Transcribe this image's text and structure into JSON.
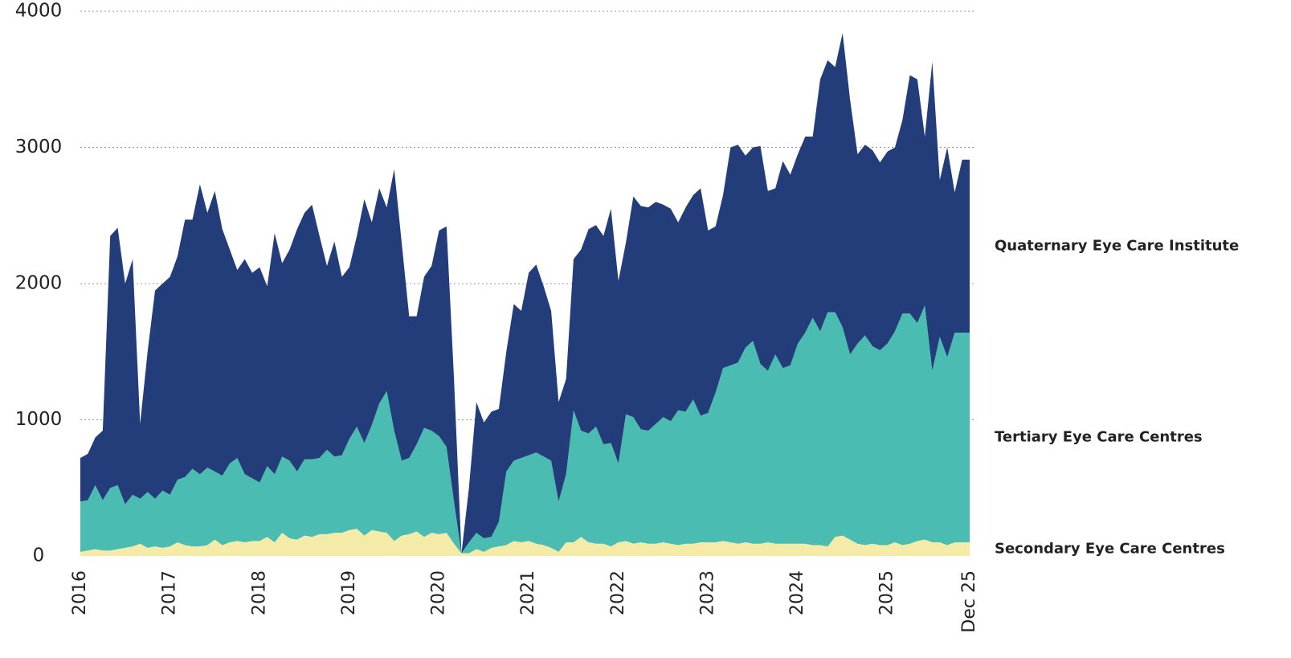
{
  "chart_data": {
    "type": "stacked-area",
    "x": [
      "2016-01",
      "2016-02",
      "2016-03",
      "2016-04",
      "2016-05",
      "2016-06",
      "2016-07",
      "2016-08",
      "2016-09",
      "2016-10",
      "2016-11",
      "2016-12",
      "2017-01",
      "2017-02",
      "2017-03",
      "2017-04",
      "2017-05",
      "2017-06",
      "2017-07",
      "2017-08",
      "2017-09",
      "2017-10",
      "2017-11",
      "2017-12",
      "2018-01",
      "2018-02",
      "2018-03",
      "2018-04",
      "2018-05",
      "2018-06",
      "2018-07",
      "2018-08",
      "2018-09",
      "2018-10",
      "2018-11",
      "2018-12",
      "2019-01",
      "2019-02",
      "2019-03",
      "2019-04",
      "2019-05",
      "2019-06",
      "2019-07",
      "2019-08",
      "2019-09",
      "2019-10",
      "2019-11",
      "2019-12",
      "2020-01",
      "2020-02",
      "2020-03",
      "2020-04",
      "2020-05",
      "2020-06",
      "2020-07",
      "2020-08",
      "2020-09",
      "2020-10",
      "2020-11",
      "2020-12",
      "2021-01",
      "2021-02",
      "2021-03",
      "2021-04",
      "2021-05",
      "2021-06",
      "2021-07",
      "2021-08",
      "2021-09",
      "2021-10",
      "2021-11",
      "2021-12",
      "2022-01",
      "2022-02",
      "2022-03",
      "2022-04",
      "2022-05",
      "2022-06",
      "2022-07",
      "2022-08",
      "2022-09",
      "2022-10",
      "2022-11",
      "2022-12",
      "2023-01",
      "2023-02",
      "2023-03",
      "2023-04",
      "2023-05",
      "2023-06",
      "2023-07",
      "2023-08",
      "2023-09",
      "2023-10",
      "2023-11",
      "2023-12",
      "2024-01",
      "2024-02",
      "2024-03",
      "2024-04",
      "2024-05",
      "2024-06",
      "2024-07",
      "2024-08",
      "2024-09",
      "2024-10",
      "2024-11",
      "2024-12",
      "2025-01",
      "2025-02",
      "2025-03",
      "2025-04",
      "2025-05",
      "2025-06",
      "2025-07",
      "2025-08",
      "2025-09",
      "2025-10",
      "2025-11",
      "2025-12"
    ],
    "series": [
      {
        "name": "Secondary Eye Care Centres",
        "color": "#f5eba8",
        "values": [
          30,
          40,
          50,
          40,
          40,
          50,
          60,
          70,
          90,
          60,
          70,
          60,
          70,
          100,
          80,
          70,
          70,
          80,
          120,
          80,
          100,
          110,
          100,
          110,
          110,
          140,
          100,
          170,
          130,
          120,
          150,
          140,
          160,
          160,
          170,
          170,
          190,
          200,
          150,
          190,
          180,
          170,
          110,
          150,
          160,
          180,
          140,
          170,
          160,
          170,
          90,
          20,
          20,
          50,
          30,
          60,
          70,
          80,
          110,
          100,
          110,
          90,
          80,
          60,
          30,
          100,
          100,
          140,
          100,
          90,
          90,
          70,
          100,
          110,
          90,
          100,
          90,
          90,
          100,
          90,
          80,
          90,
          90,
          100,
          100,
          100,
          110,
          100,
          90,
          100,
          90,
          90,
          100,
          90,
          90,
          90,
          90,
          90,
          80,
          80,
          70,
          140,
          150,
          120,
          90,
          80,
          90,
          80,
          80,
          100,
          80,
          90,
          110,
          120,
          100,
          100,
          80,
          100,
          100,
          100
        ]
      },
      {
        "name": "Tertiary Eye Care Centres",
        "color": "#4bbcb1",
        "values": [
          370,
          370,
          470,
          370,
          460,
          470,
          320,
          380,
          330,
          410,
          350,
          420,
          380,
          460,
          500,
          570,
          530,
          570,
          500,
          510,
          580,
          610,
          500,
          460,
          430,
          520,
          500,
          560,
          570,
          500,
          560,
          570,
          560,
          620,
          560,
          570,
          670,
          750,
          680,
          770,
          940,
          1040,
          810,
          550,
          560,
          640,
          800,
          750,
          720,
          630,
          310,
          0,
          80,
          120,
          100,
          80,
          180,
          540,
          590,
          620,
          630,
          670,
          650,
          640,
          370,
          500,
          970,
          780,
          800,
          860,
          730,
          760,
          580,
          930,
          930,
          830,
          830,
          880,
          920,
          900,
          990,
          970,
          1060,
          930,
          950,
          1100,
          1270,
          1300,
          1330,
          1430,
          1490,
          1320,
          1260,
          1390,
          1290,
          1310,
          1470,
          1550,
          1670,
          1570,
          1720,
          1650,
          1530,
          1360,
          1470,
          1540,
          1450,
          1430,
          1480,
          1550,
          1700,
          1690,
          1600,
          1720,
          1260,
          1510,
          1380,
          1540,
          1540,
          1540
        ]
      },
      {
        "name": "Quaternary Eye Care Institute",
        "color": "#233d7b",
        "values": [
          320,
          340,
          350,
          510,
          1850,
          1890,
          1620,
          1730,
          550,
          1030,
          1530,
          1520,
          1600,
          1640,
          1890,
          1830,
          2130,
          1870,
          2060,
          1810,
          1570,
          1380,
          1580,
          1510,
          1580,
          1320,
          1770,
          1420,
          1550,
          1780,
          1810,
          1870,
          1630,
          1350,
          1580,
          1310,
          1260,
          1400,
          1790,
          1490,
          1580,
          1350,
          1920,
          1600,
          1040,
          940,
          1110,
          1210,
          1510,
          1620,
          900,
          0,
          400,
          960,
          850,
          920,
          830,
          880,
          1150,
          1080,
          1340,
          1380,
          1250,
          1100,
          730,
          700,
          1110,
          1330,
          1500,
          1480,
          1530,
          1720,
          1340,
          1260,
          1620,
          1640,
          1640,
          1630,
          1560,
          1560,
          1380,
          1500,
          1500,
          1670,
          1340,
          1220,
          1270,
          1600,
          1600,
          1410,
          1420,
          1600,
          1320,
          1220,
          1520,
          1400,
          1390,
          1440,
          1330,
          1850,
          1850,
          1800,
          2160,
          1870,
          1390,
          1400,
          1440,
          1380,
          1410,
          1350,
          1420,
          1750,
          1790,
          1240,
          2270,
          1150,
          1540,
          1030,
          1270,
          1270
        ]
      }
    ],
    "xticks": [
      {
        "value": "2016-01",
        "label": "2016"
      },
      {
        "value": "2017-01",
        "label": "2017"
      },
      {
        "value": "2018-01",
        "label": "2018"
      },
      {
        "value": "2019-01",
        "label": "2019"
      },
      {
        "value": "2020-01",
        "label": "2020"
      },
      {
        "value": "2021-01",
        "label": "2021"
      },
      {
        "value": "2022-01",
        "label": "2022"
      },
      {
        "value": "2023-01",
        "label": "2023"
      },
      {
        "value": "2024-01",
        "label": "2024"
      },
      {
        "value": "2025-01",
        "label": "2025"
      },
      {
        "value": "2025-12",
        "label": "Dec 25"
      }
    ],
    "ylim": [
      0,
      4000
    ],
    "yticks": [
      0,
      1000,
      2000,
      3000,
      4000
    ],
    "grid": true
  }
}
